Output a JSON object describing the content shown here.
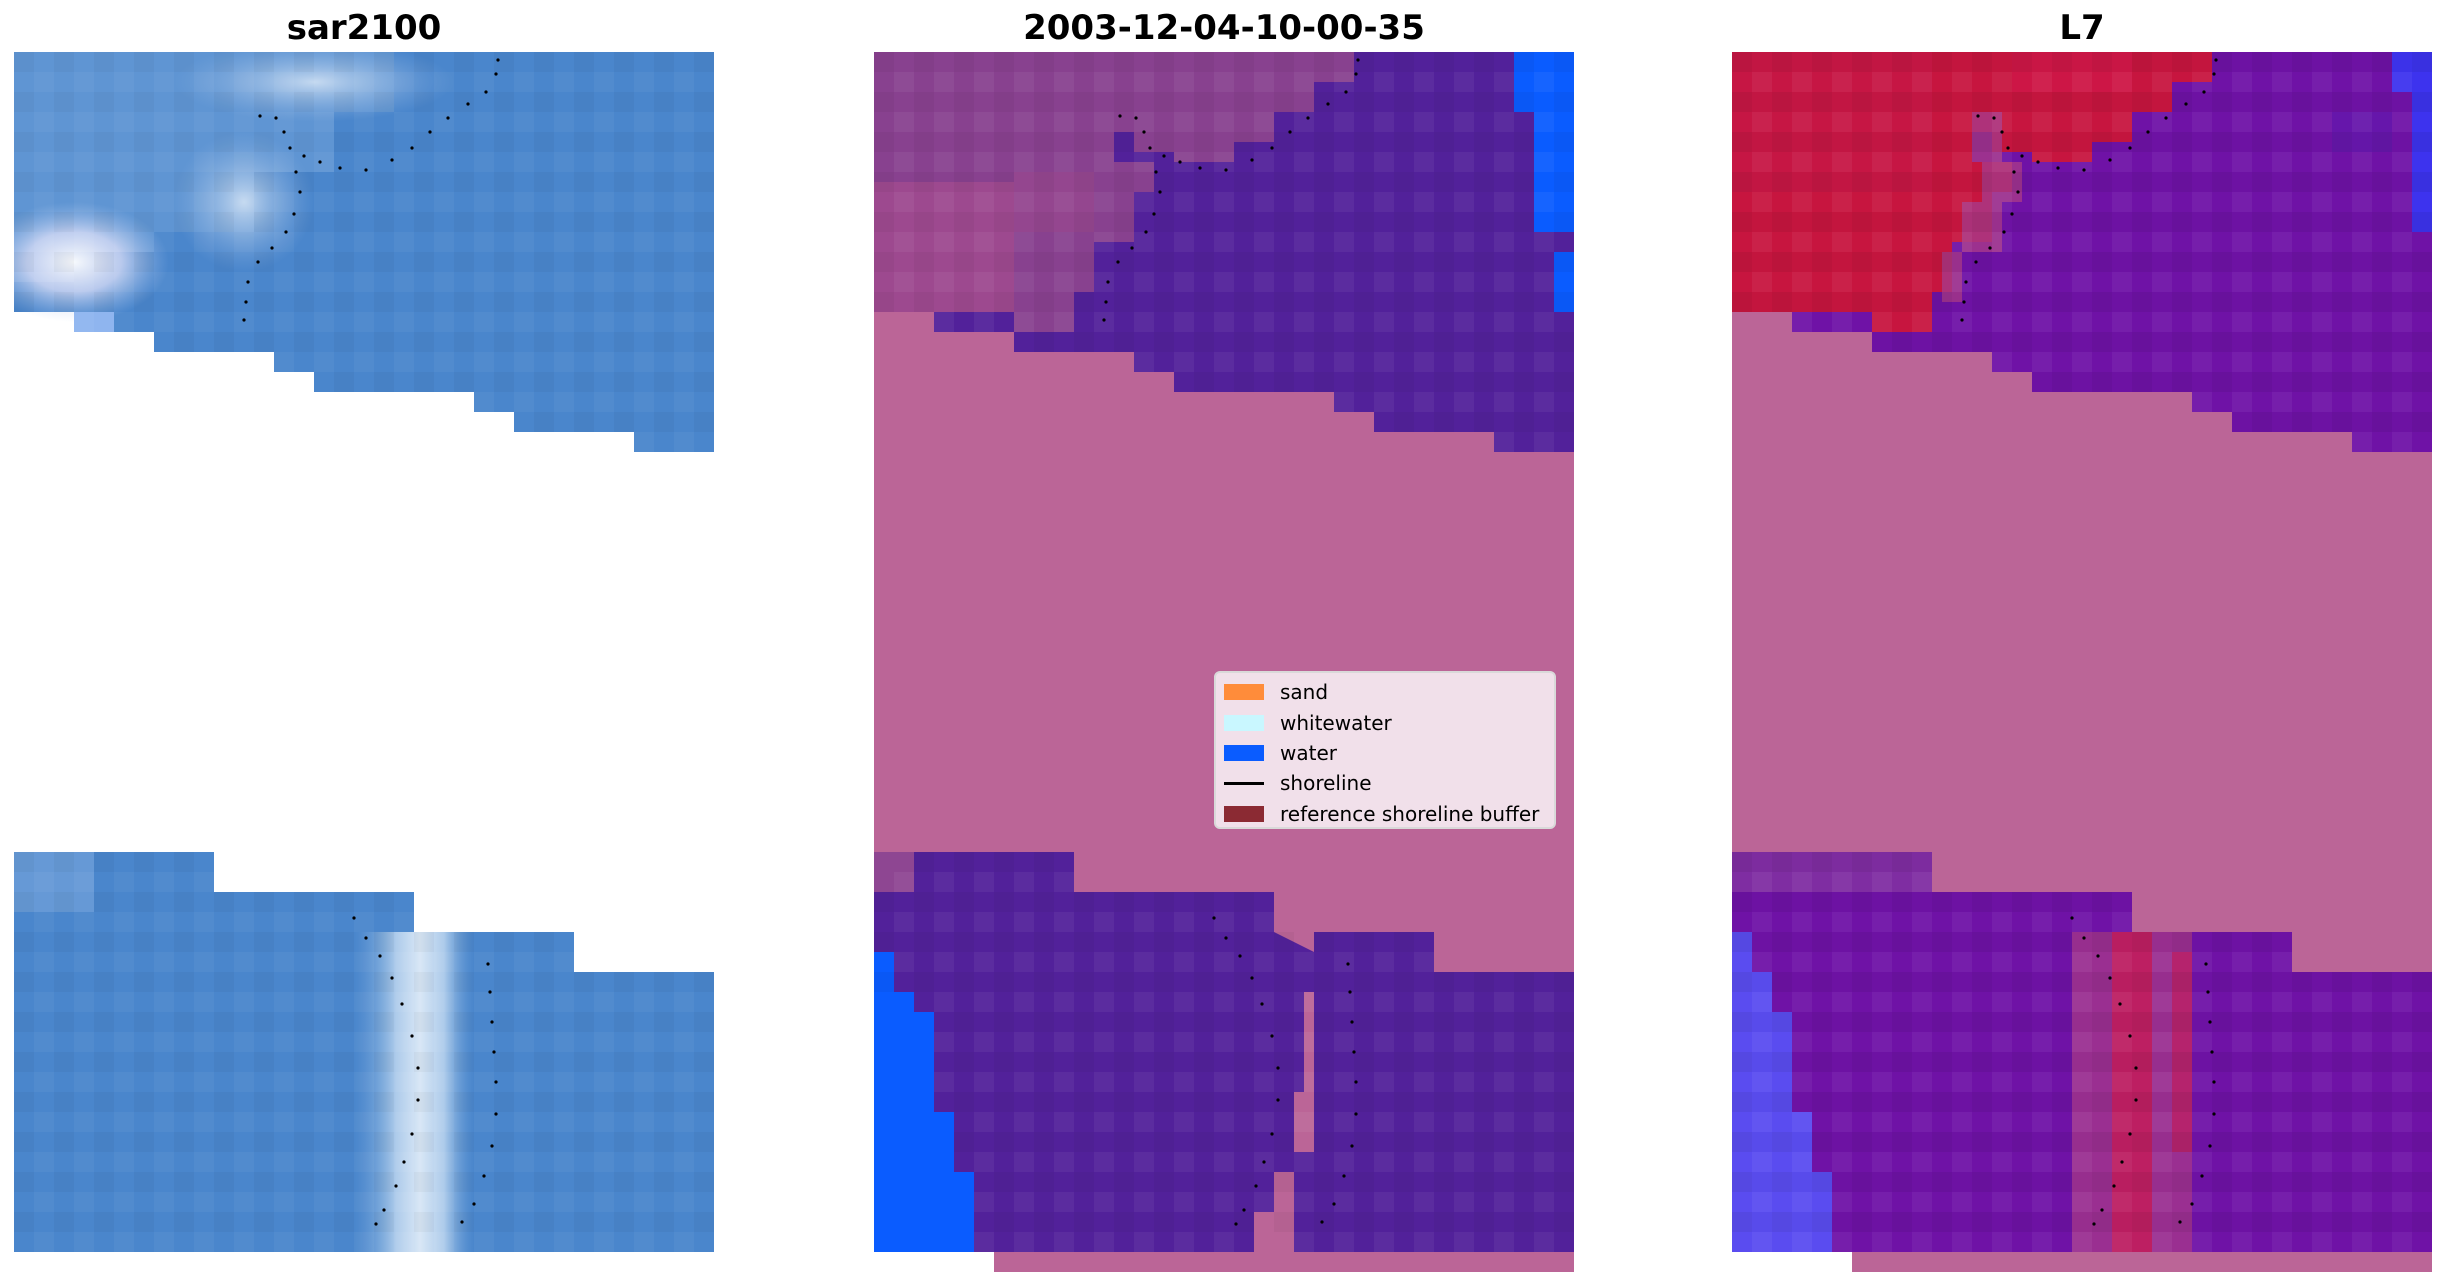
{
  "panels": [
    {
      "title": "sar2100"
    },
    {
      "title": "2003-12-04-10-00-35"
    },
    {
      "title": "L7"
    }
  ],
  "legend": {
    "items": [
      {
        "label": "sand",
        "kind": "patch",
        "color": "#ff8c3a"
      },
      {
        "label": "whitewater",
        "kind": "patch",
        "color": "#c9f7ff"
      },
      {
        "label": "water",
        "kind": "patch",
        "color": "#0a5cff"
      },
      {
        "label": "shoreline",
        "kind": "line",
        "color": "#000000"
      },
      {
        "label": "reference shoreline buffer",
        "kind": "patch",
        "color": "#8b2a33"
      }
    ]
  },
  "colors": {
    "rgb_water": "#4a86cc",
    "class_water_overlay": "#52219a",
    "class_open_water": "#0a5cff",
    "buffer_overlay": "#bb6597",
    "nir_land": "#c7153f",
    "nir_water": "#6f12a6",
    "shoreline_points": "#000000"
  }
}
